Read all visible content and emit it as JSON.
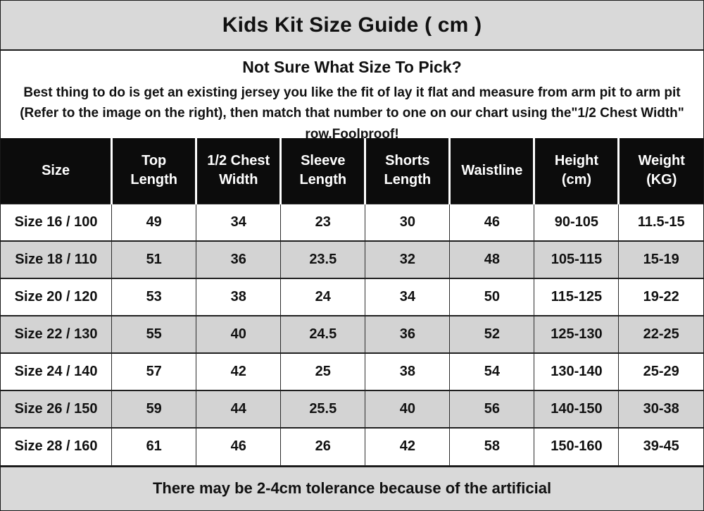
{
  "header": {
    "title": "Kids Kit Size Guide ( cm )"
  },
  "intro": {
    "heading": "Not Sure What Size To Pick?",
    "body": "Best thing to do is get an existing jersey you like the fit of lay it flat and measure from arm pit to arm pit (Refer to the image on the right), then match that number to one on our chart using the\"1/2 Chest Width\" row.Foolproof!"
  },
  "table": {
    "columns": [
      "Size",
      "Top Length",
      "1/2 Chest Width",
      "Sleeve Length",
      "Shorts Length",
      "Waistline",
      "Height (cm)",
      "Weight (KG)"
    ],
    "rows": [
      [
        "Size 16 / 100",
        "49",
        "34",
        "23",
        "30",
        "46",
        "90-105",
        "11.5-15"
      ],
      [
        "Size 18 / 110",
        "51",
        "36",
        "23.5",
        "32",
        "48",
        "105-115",
        "15-19"
      ],
      [
        "Size 20 / 120",
        "53",
        "38",
        "24",
        "34",
        "50",
        "115-125",
        "19-22"
      ],
      [
        "Size 22 / 130",
        "55",
        "40",
        "24.5",
        "36",
        "52",
        "125-130",
        "22-25"
      ],
      [
        "Size 24 / 140",
        "57",
        "42",
        "25",
        "38",
        "54",
        "130-140",
        "25-29"
      ],
      [
        "Size 26 / 150",
        "59",
        "44",
        "25.5",
        "40",
        "56",
        "140-150",
        "30-38"
      ],
      [
        "Size 28 / 160",
        "61",
        "46",
        "26",
        "42",
        "58",
        "150-160",
        "39-45"
      ]
    ]
  },
  "footer": {
    "note": "There may be 2-4cm tolerance because of the artificial"
  },
  "colors": {
    "bar_background": "#d9d9d9",
    "header_row_background": "#0c0c0c",
    "stripe_row_background": "#d3d3d3"
  }
}
